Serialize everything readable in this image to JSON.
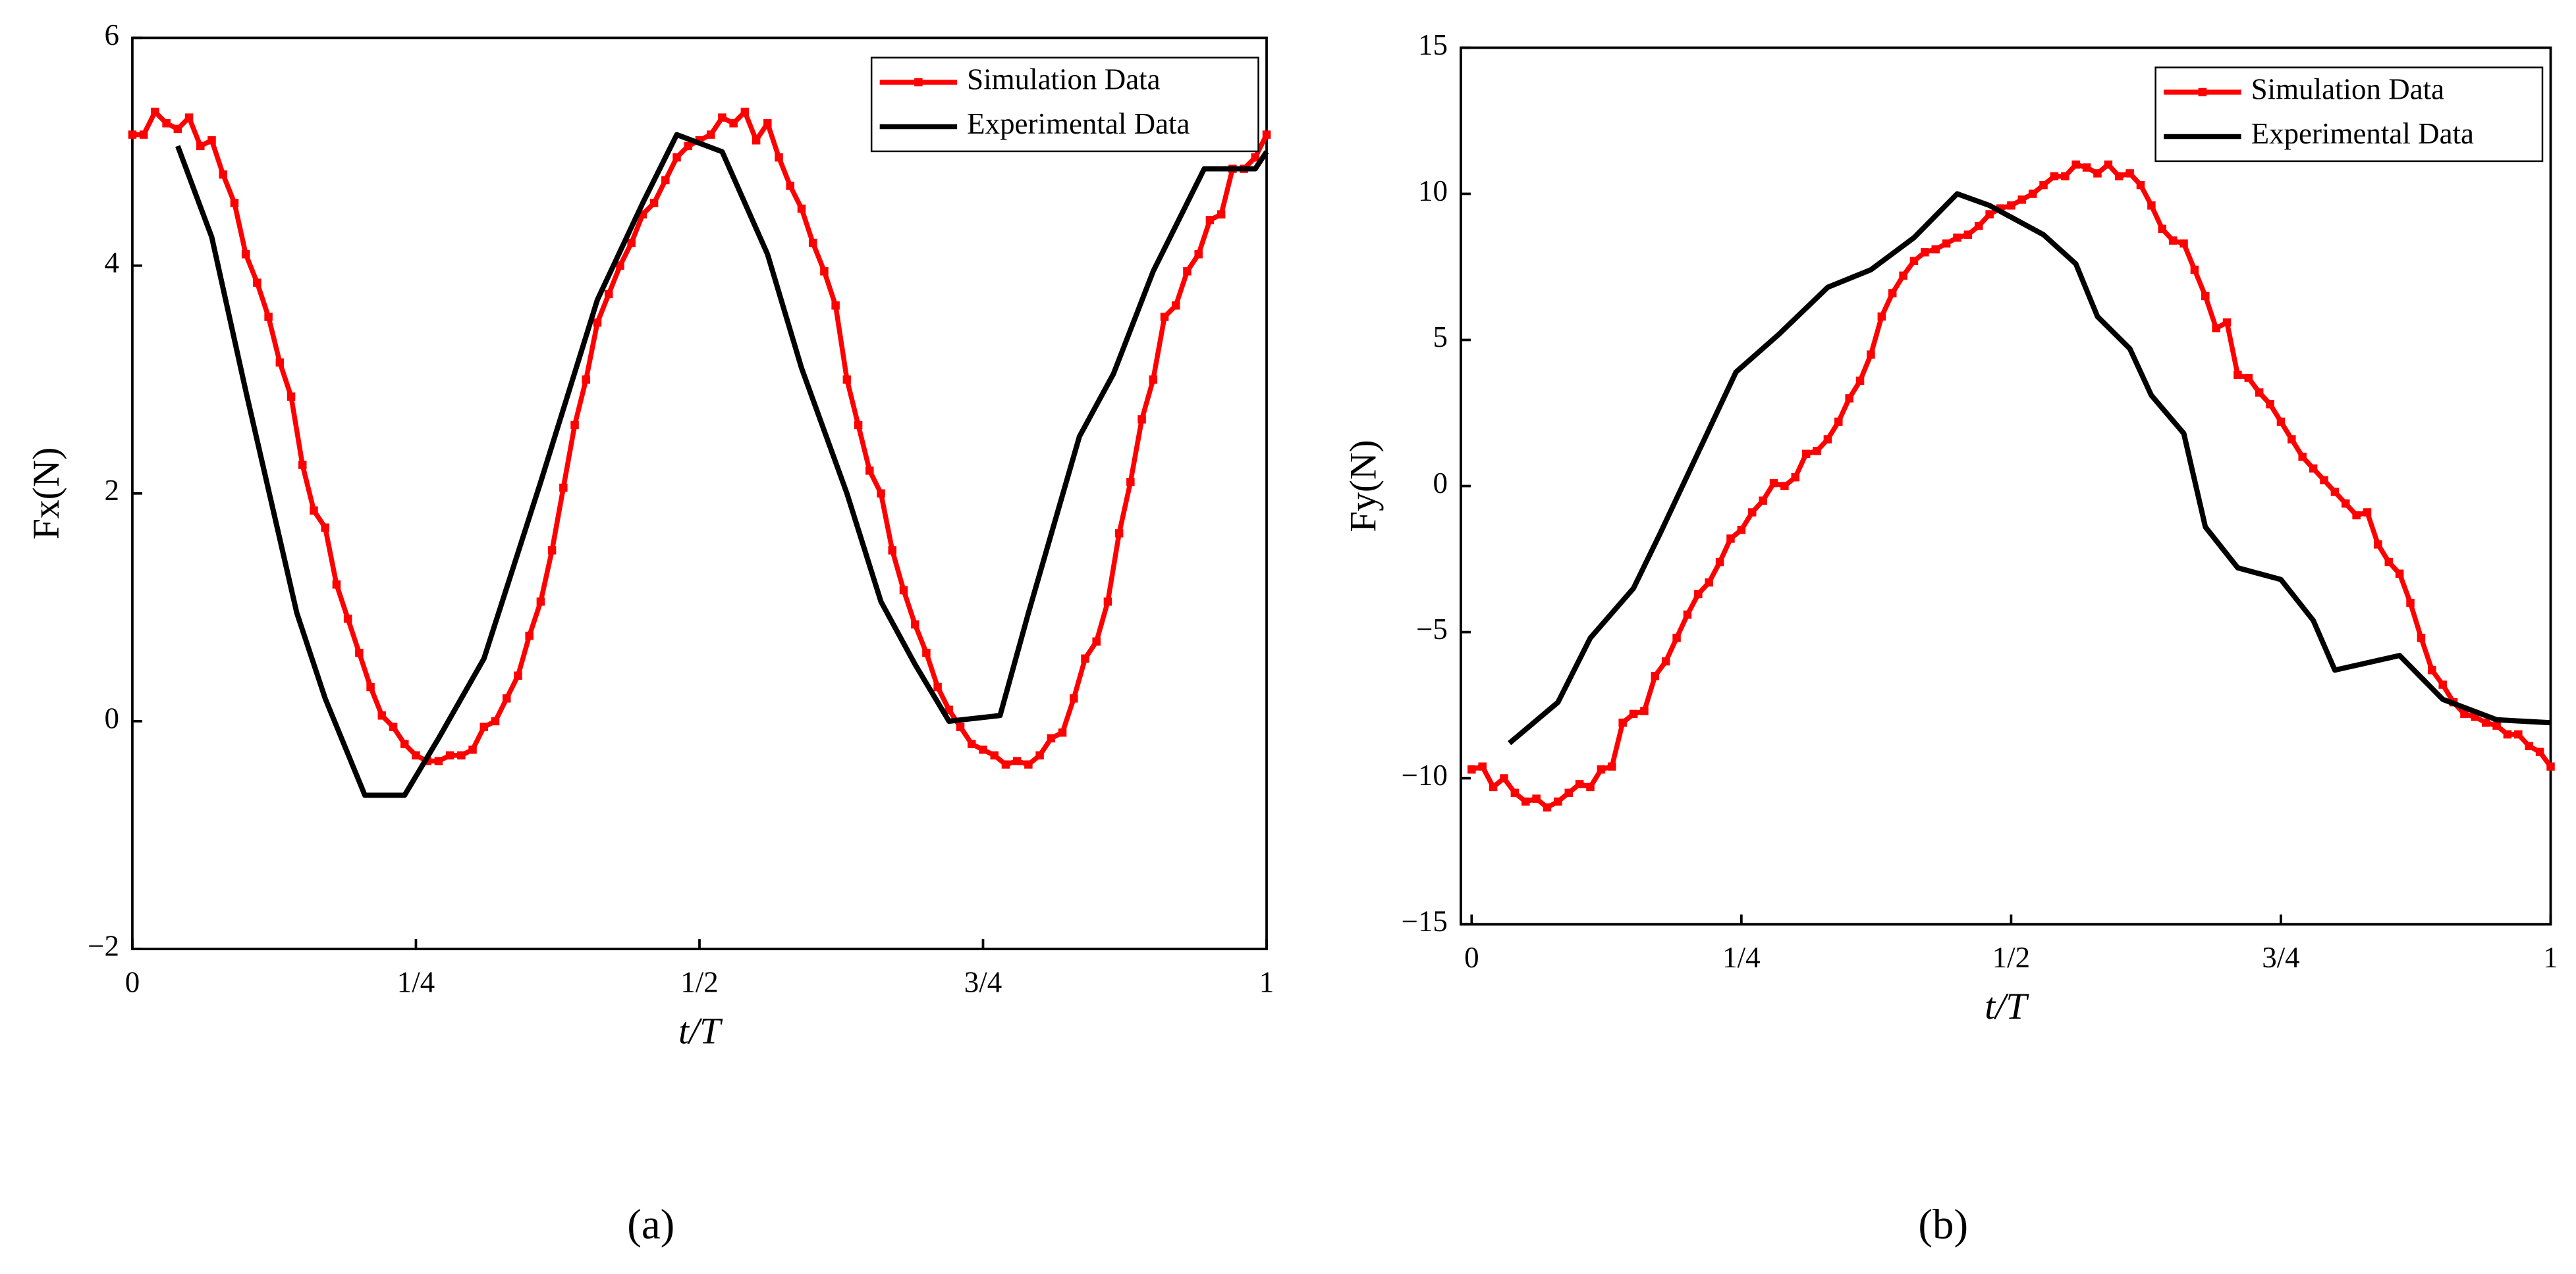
{
  "chart_data": [
    {
      "type": "line",
      "caption": "(a)",
      "xlabel": "t/T",
      "ylabel": "Fx(N)",
      "legend": "upper right",
      "xlim": [
        0,
        1
      ],
      "xticks": [
        0,
        {
          "value": 0.25,
          "label": "1/4"
        },
        {
          "value": 0.5,
          "label": "1/2"
        },
        {
          "value": 0.75,
          "label": "3/4"
        },
        1
      ],
      "ylim": [
        -2,
        6
      ],
      "yticks": [
        {
          "value": -2,
          "label": "−2"
        },
        0,
        2,
        4,
        6
      ],
      "series": [
        {
          "name": "Simulation Data",
          "color": "#ff0000",
          "markers": true,
          "x": [
            0,
            0.01,
            0.02,
            0.03,
            0.04,
            0.05,
            0.06,
            0.07,
            0.08,
            0.09,
            0.1,
            0.11,
            0.12,
            0.13,
            0.14,
            0.15,
            0.16,
            0.17,
            0.18,
            0.19,
            0.2,
            0.21,
            0.22,
            0.23,
            0.24,
            0.25,
            0.26,
            0.27,
            0.28,
            0.29,
            0.3,
            0.31,
            0.32,
            0.33,
            0.34,
            0.35,
            0.36,
            0.37,
            0.38,
            0.39,
            0.4,
            0.41,
            0.42,
            0.43,
            0.44,
            0.45,
            0.46,
            0.47,
            0.48,
            0.49,
            0.5,
            0.51,
            0.52,
            0.53,
            0.54,
            0.55,
            0.56,
            0.57,
            0.58,
            0.59,
            0.6,
            0.61,
            0.62,
            0.63,
            0.64,
            0.65,
            0.66,
            0.67,
            0.68,
            0.69,
            0.7,
            0.71,
            0.72,
            0.73,
            0.74,
            0.75,
            0.76,
            0.77,
            0.78,
            0.79,
            0.8,
            0.81,
            0.82,
            0.83,
            0.84,
            0.85,
            0.86,
            0.87,
            0.88,
            0.89,
            0.9,
            0.91,
            0.92,
            0.93,
            0.94,
            0.95,
            0.96,
            0.97,
            0.98,
            0.99,
            1
          ],
          "values": [
            5.15,
            5.15,
            5.35,
            5.25,
            5.2,
            5.3,
            5.05,
            5.1,
            4.8,
            4.55,
            4.1,
            3.85,
            3.55,
            3.15,
            2.85,
            2.25,
            1.85,
            1.7,
            1.2,
            0.9,
            0.6,
            0.3,
            0.05,
            -0.05,
            -0.2,
            -0.3,
            -0.35,
            -0.35,
            -0.3,
            -0.3,
            -0.25,
            -0.05,
            0,
            0.2,
            0.4,
            0.75,
            1.05,
            1.5,
            2.05,
            2.6,
            3,
            3.5,
            3.75,
            4,
            4.2,
            4.45,
            4.55,
            4.75,
            4.95,
            5.05,
            5.1,
            5.15,
            5.3,
            5.25,
            5.35,
            5.1,
            5.25,
            4.95,
            4.7,
            4.5,
            4.2,
            3.95,
            3.65,
            3,
            2.6,
            2.2,
            2,
            1.5,
            1.15,
            0.85,
            0.6,
            0.3,
            0.1,
            -0.05,
            -0.2,
            -0.25,
            -0.3,
            -0.38,
            -0.35,
            -0.38,
            -0.3,
            -0.15,
            -0.1,
            0.2,
            0.55,
            0.7,
            1.05,
            1.65,
            2.1,
            2.65,
            3,
            3.55,
            3.65,
            3.95,
            4.1,
            4.4,
            4.45,
            4.85,
            4.85,
            4.95,
            5.15
          ]
        },
        {
          "name": "Experimental Data",
          "color": "#000000",
          "markers": false,
          "x": [
            0.04,
            0.07,
            0.1,
            0.145,
            0.17,
            0.205,
            0.24,
            0.27,
            0.31,
            0.36,
            0.41,
            0.45,
            0.48,
            0.52,
            0.56,
            0.59,
            0.63,
            0.66,
            0.69,
            0.72,
            0.765,
            0.79,
            0.835,
            0.865,
            0.9,
            0.945,
            0.99,
            1
          ],
          "values": [
            5.05,
            4.25,
            2.9,
            0.95,
            0.2,
            -0.65,
            -0.65,
            -0.15,
            0.55,
            2.1,
            3.7,
            4.55,
            5.15,
            5,
            4.1,
            3.1,
            2,
            1.05,
            0.5,
            0,
            0.05,
            0.95,
            2.5,
            3.05,
            3.95,
            4.85,
            4.85,
            5
          ]
        }
      ]
    },
    {
      "type": "line",
      "caption": "(b)",
      "xlabel": "t/T",
      "ylabel": "Fy(N)",
      "legend": "upper right",
      "xlim": [
        -0.01,
        1
      ],
      "xticks": [
        0,
        {
          "value": 0.25,
          "label": "1/4"
        },
        {
          "value": 0.5,
          "label": "1/2"
        },
        {
          "value": 0.75,
          "label": "3/4"
        },
        1
      ],
      "ylim": [
        -15,
        15
      ],
      "yticks": [
        {
          "value": -15,
          "label": "−15"
        },
        {
          "value": -10,
          "label": "−10"
        },
        {
          "value": -5,
          "label": "−5"
        },
        0,
        5,
        10,
        15
      ],
      "series": [
        {
          "name": "Simulation Data",
          "color": "#ff0000",
          "markers": true,
          "x": [
            0,
            0.01,
            0.02,
            0.03,
            0.04,
            0.05,
            0.06,
            0.07,
            0.08,
            0.09,
            0.1,
            0.11,
            0.12,
            0.13,
            0.14,
            0.15,
            0.16,
            0.17,
            0.18,
            0.19,
            0.2,
            0.21,
            0.22,
            0.23,
            0.24,
            0.25,
            0.26,
            0.27,
            0.28,
            0.29,
            0.3,
            0.31,
            0.32,
            0.33,
            0.34,
            0.35,
            0.36,
            0.37,
            0.38,
            0.39,
            0.4,
            0.41,
            0.42,
            0.43,
            0.44,
            0.45,
            0.46,
            0.47,
            0.48,
            0.49,
            0.5,
            0.51,
            0.52,
            0.53,
            0.54,
            0.55,
            0.56,
            0.57,
            0.58,
            0.59,
            0.6,
            0.61,
            0.62,
            0.63,
            0.64,
            0.65,
            0.66,
            0.67,
            0.68,
            0.69,
            0.7,
            0.71,
            0.72,
            0.73,
            0.74,
            0.75,
            0.76,
            0.77,
            0.78,
            0.79,
            0.8,
            0.81,
            0.82,
            0.83,
            0.84,
            0.85,
            0.86,
            0.87,
            0.88,
            0.89,
            0.9,
            0.91,
            0.92,
            0.93,
            0.94,
            0.95,
            0.96,
            0.97,
            0.98,
            0.99,
            1
          ],
          "values": [
            -9.7,
            -9.6,
            -10.3,
            -10,
            -10.5,
            -10.8,
            -10.7,
            -11,
            -10.8,
            -10.5,
            -10.2,
            -10.3,
            -9.7,
            -9.6,
            -8.1,
            -7.8,
            -7.7,
            -6.5,
            -6,
            -5.2,
            -4.4,
            -3.7,
            -3.3,
            -2.6,
            -1.8,
            -1.5,
            -0.9,
            -0.5,
            0.1,
            0,
            0.3,
            1.1,
            1.2,
            1.6,
            2.2,
            3,
            3.6,
            4.5,
            5.8,
            6.6,
            7.2,
            7.7,
            8,
            8.1,
            8.3,
            8.5,
            8.6,
            8.9,
            9.3,
            9.5,
            9.6,
            9.8,
            10,
            10.3,
            10.6,
            10.6,
            11,
            10.9,
            10.7,
            11,
            10.6,
            10.7,
            10.3,
            9.6,
            8.8,
            8.4,
            8.3,
            7.4,
            6.5,
            5.4,
            5.6,
            3.8,
            3.7,
            3.2,
            2.8,
            2.2,
            1.6,
            1,
            0.6,
            0.2,
            -0.2,
            -0.6,
            -1,
            -0.9,
            -2,
            -2.6,
            -3,
            -4,
            -5.2,
            -6.3,
            -6.8,
            -7.4,
            -7.8,
            -7.9,
            -8.1,
            -8.2,
            -8.5,
            -8.5,
            -8.9,
            -9.1,
            -9.6
          ]
        },
        {
          "name": "Experimental Data",
          "color": "#000000",
          "markers": false,
          "x": [
            0.035,
            0.08,
            0.11,
            0.15,
            0.175,
            0.245,
            0.285,
            0.33,
            0.37,
            0.41,
            0.45,
            0.48,
            0.53,
            0.56,
            0.58,
            0.61,
            0.63,
            0.66,
            0.68,
            0.71,
            0.75,
            0.78,
            0.8,
            0.86,
            0.9,
            0.95,
            1
          ],
          "values": [
            -8.8,
            -7.4,
            -5.2,
            -3.5,
            -1.6,
            3.9,
            5.2,
            6.8,
            7.4,
            8.5,
            10,
            9.6,
            8.6,
            7.6,
            5.8,
            4.7,
            3.1,
            1.8,
            -1.4,
            -2.8,
            -3.2,
            -4.6,
            -6.3,
            -5.8,
            -7.3,
            -8,
            -8.1
          ]
        }
      ]
    }
  ]
}
